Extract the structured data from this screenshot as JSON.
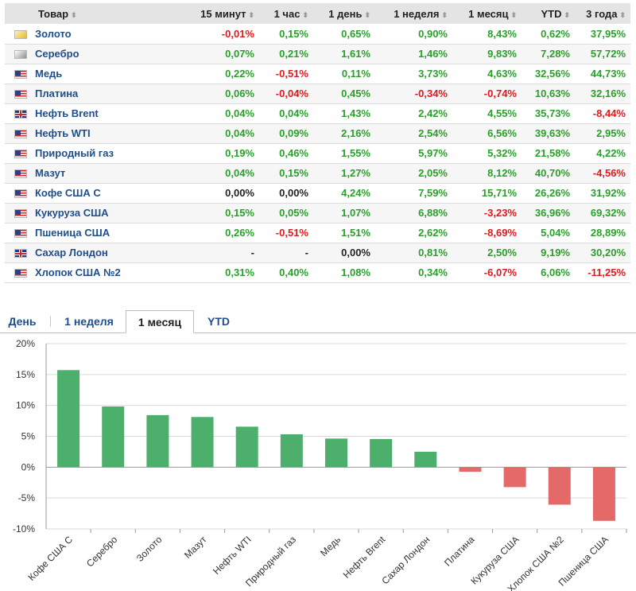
{
  "table": {
    "columns": [
      "Товар",
      "15 минут",
      "1 час",
      "1 день",
      "1 неделя",
      "1 месяц",
      "YTD",
      "3 года"
    ],
    "rows": [
      {
        "flag": "gold-icon",
        "name": "Золото",
        "v": [
          "-0,01%",
          "0,15%",
          "0,65%",
          "0,90%",
          "8,43%",
          "0,62%",
          "37,95%"
        ]
      },
      {
        "flag": "silver-icon",
        "name": "Серебро",
        "v": [
          "0,07%",
          "0,21%",
          "1,61%",
          "1,46%",
          "9,83%",
          "7,28%",
          "57,72%"
        ]
      },
      {
        "flag": "us-flag-icon",
        "name": "Медь",
        "v": [
          "0,22%",
          "-0,51%",
          "0,11%",
          "3,73%",
          "4,63%",
          "32,56%",
          "44,73%"
        ]
      },
      {
        "flag": "us-flag-icon",
        "name": "Платина",
        "v": [
          "0,06%",
          "-0,04%",
          "0,45%",
          "-0,34%",
          "-0,74%",
          "10,63%",
          "32,16%"
        ]
      },
      {
        "flag": "uk-flag-icon",
        "name": "Нефть Brent",
        "v": [
          "0,04%",
          "0,04%",
          "1,43%",
          "2,42%",
          "4,55%",
          "35,73%",
          "-8,44%"
        ]
      },
      {
        "flag": "us-flag-icon",
        "name": "Нефть WTI",
        "v": [
          "0,04%",
          "0,09%",
          "2,16%",
          "2,54%",
          "6,56%",
          "39,63%",
          "2,95%"
        ]
      },
      {
        "flag": "us-flag-icon",
        "name": "Природный газ",
        "v": [
          "0,19%",
          "0,46%",
          "1,55%",
          "5,97%",
          "5,32%",
          "21,58%",
          "4,22%"
        ]
      },
      {
        "flag": "us-flag-icon",
        "name": "Мазут",
        "v": [
          "0,04%",
          "0,15%",
          "1,27%",
          "2,05%",
          "8,12%",
          "40,70%",
          "-4,56%"
        ]
      },
      {
        "flag": "us-flag-icon",
        "name": "Кофе США С",
        "v": [
          "0,00%",
          "0,00%",
          "4,24%",
          "7,59%",
          "15,71%",
          "26,26%",
          "31,92%"
        ]
      },
      {
        "flag": "us-flag-icon",
        "name": "Кукуруза США",
        "v": [
          "0,15%",
          "0,05%",
          "1,07%",
          "6,88%",
          "-3,23%",
          "36,96%",
          "69,32%"
        ]
      },
      {
        "flag": "us-flag-icon",
        "name": "Пшеница США",
        "v": [
          "0,26%",
          "-0,51%",
          "1,51%",
          "2,62%",
          "-8,69%",
          "5,04%",
          "28,89%"
        ]
      },
      {
        "flag": "uk-flag-icon",
        "name": "Сахар Лондон",
        "v": [
          "-",
          "-",
          "0,00%",
          "0,81%",
          "2,50%",
          "9,19%",
          "30,20%"
        ]
      },
      {
        "flag": "us-flag-icon",
        "name": "Хлопок США №2",
        "v": [
          "0,31%",
          "0,40%",
          "1,08%",
          "0,34%",
          "-6,07%",
          "6,06%",
          "-11,25%"
        ]
      }
    ]
  },
  "tabs": [
    {
      "label": "День",
      "active": false
    },
    {
      "label": "1 неделя",
      "active": false
    },
    {
      "label": "1 месяц",
      "active": true
    },
    {
      "label": "YTD",
      "active": false
    }
  ],
  "colors": {
    "positive": "#2aa02a",
    "negative": "#e0191c",
    "bar_positive": "#4caf6b",
    "bar_negative": "#e46a6a",
    "grid": "#d9d9d9"
  },
  "chart_data": {
    "type": "bar",
    "categories": [
      "Кофе США С",
      "Серебро",
      "Золото",
      "Мазут",
      "Нефть WTI",
      "Природный газ",
      "Медь",
      "Нефть Brent",
      "Сахар Лондон",
      "Платина",
      "Кукуруза США",
      "Хлопок США №2",
      "Пшеница США"
    ],
    "values": [
      15.71,
      9.83,
      8.43,
      8.12,
      6.56,
      5.32,
      4.63,
      4.55,
      2.5,
      -0.74,
      -3.23,
      -6.07,
      -8.69
    ],
    "yticks": [
      "20%",
      "15%",
      "10%",
      "5%",
      "0%",
      "-5%",
      "-10%"
    ],
    "ylim": [
      -10,
      20
    ],
    "grid": true
  }
}
